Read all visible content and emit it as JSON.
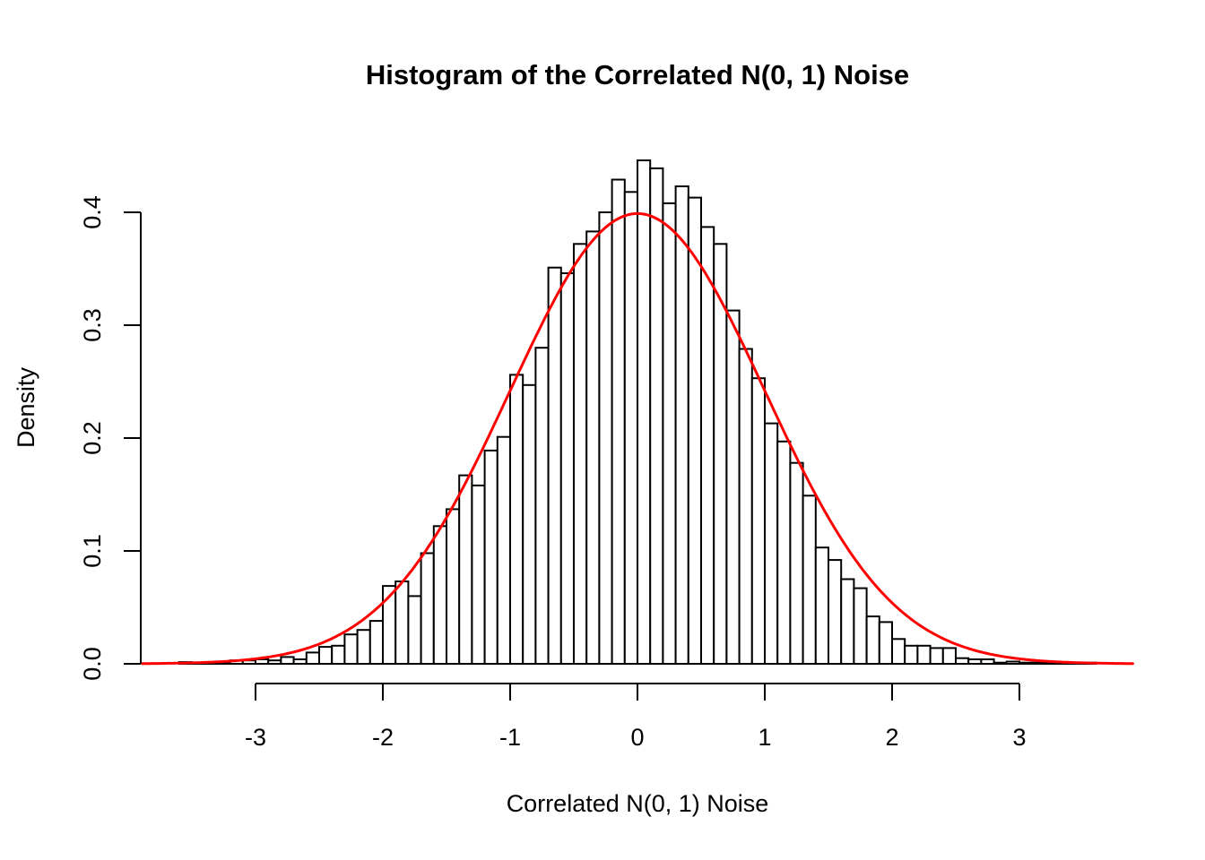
{
  "title": "Histogram of the Correlated N(0, 1) Noise",
  "x_axis": {
    "label": "Correlated N(0, 1) Noise",
    "tick_labels": [
      "-3",
      "-2",
      "-1",
      "0",
      "1",
      "2",
      "3"
    ]
  },
  "y_axis": {
    "label": "Density",
    "tick_labels": [
      "0.0",
      "0.1",
      "0.2",
      "0.3",
      "0.4"
    ]
  },
  "chart_data": {
    "type": "bar",
    "subtype": "histogram-with-density-curve",
    "title": "Histogram of the Correlated N(0, 1) Noise",
    "xlabel": "Correlated N(0, 1) Noise",
    "ylabel": "Density",
    "bin_start": -3.6,
    "bin_width": 0.1,
    "densities": [
      0.0015,
      0.001,
      0.001,
      0.0015,
      0.003,
      0.003,
      0.004,
      0.003,
      0.006,
      0.004,
      0.01,
      0.015,
      0.016,
      0.026,
      0.03,
      0.038,
      0.069,
      0.073,
      0.06,
      0.098,
      0.122,
      0.137,
      0.167,
      0.158,
      0.189,
      0.201,
      0.256,
      0.247,
      0.28,
      0.351,
      0.346,
      0.372,
      0.383,
      0.4,
      0.429,
      0.418,
      0.446,
      0.439,
      0.408,
      0.423,
      0.413,
      0.387,
      0.372,
      0.313,
      0.279,
      0.253,
      0.213,
      0.197,
      0.178,
      0.149,
      0.103,
      0.092,
      0.075,
      0.067,
      0.042,
      0.037,
      0.022,
      0.016,
      0.016,
      0.014,
      0.014,
      0.005,
      0.004,
      0.004,
      0.001,
      0.002,
      0.001,
      0.001,
      0.001,
      0.001,
      0.001,
      0.001
    ],
    "x_ticks": [
      -3,
      -2,
      -1,
      0,
      1,
      2,
      3
    ],
    "y_ticks": [
      0.0,
      0.1,
      0.2,
      0.3,
      0.4
    ],
    "xlim": [
      -3.89,
      3.89
    ],
    "ylim": [
      -0.018,
      0.468
    ],
    "grid": false,
    "legend": "none",
    "bar_fill": "#FFFFFF",
    "bar_stroke": "#000000",
    "overlay_curve": {
      "type": "normal_density",
      "mean": 0,
      "sd": 1,
      "peak_density": 0.399,
      "x_range": [
        -3.89,
        3.89
      ],
      "color": "#FF0000"
    }
  }
}
